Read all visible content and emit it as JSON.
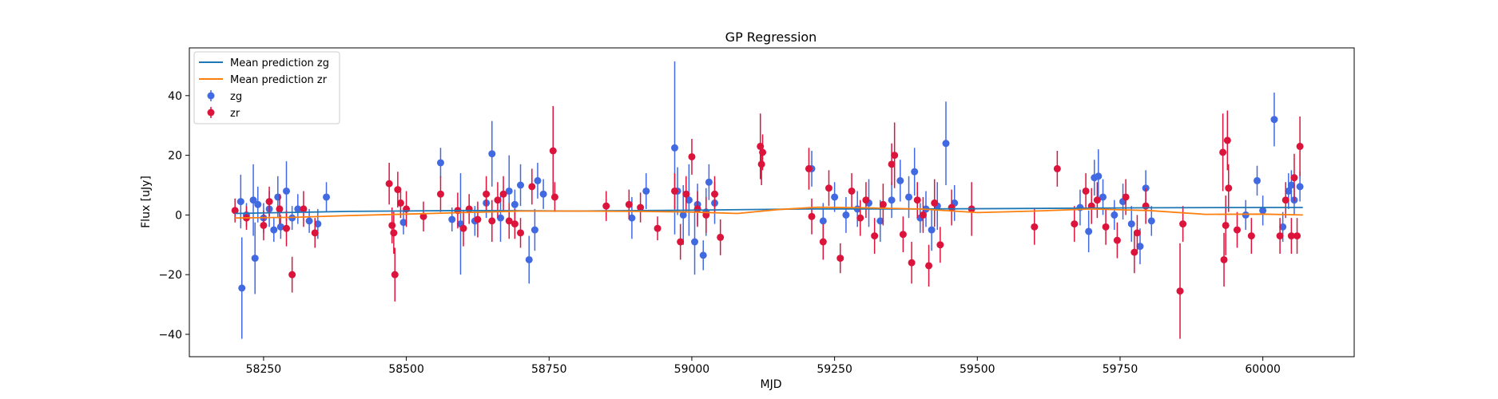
{
  "chart_data": {
    "type": "scatter",
    "title": "GP Regression",
    "xlabel": "MJD",
    "ylabel": "Flux [uJy]",
    "xlim": [
      58120,
      60160
    ],
    "ylim": [
      -47.5,
      56
    ],
    "xticks": [
      58250,
      58500,
      58750,
      59000,
      59250,
      59500,
      59750,
      60000
    ],
    "yticks": [
      -40,
      -20,
      0,
      20,
      40
    ],
    "tick_labels_x": [
      "58250",
      "58500",
      "58750",
      "59000",
      "59250",
      "59500",
      "59750",
      "60000"
    ],
    "tick_labels_y": [
      "−40",
      "−20",
      "0",
      "20",
      "40"
    ],
    "grid": false,
    "legend_position": "top-left",
    "legend": [
      {
        "label": "Mean prediction zg",
        "kind": "line",
        "color": "#1f77b4"
      },
      {
        "label": "Mean prediction zr",
        "kind": "line",
        "color": "#ff7f0e"
      },
      {
        "label": "zg",
        "kind": "errorbar",
        "color": "#4169e1"
      },
      {
        "label": "zr",
        "kind": "errorbar",
        "color": "#dc143c"
      }
    ],
    "series": [
      {
        "name": "Mean prediction zg",
        "type": "line",
        "color": "#1f77b4",
        "points": [
          [
            58200,
            0.5
          ],
          [
            58400,
            1.2
          ],
          [
            58600,
            1.5
          ],
          [
            58800,
            1.3
          ],
          [
            59000,
            1.6
          ],
          [
            59200,
            2.0
          ],
          [
            59400,
            2.0
          ],
          [
            59600,
            2.2
          ],
          [
            59800,
            2.4
          ],
          [
            60000,
            2.5
          ],
          [
            60070,
            2.5
          ]
        ]
      },
      {
        "name": "Mean prediction zr",
        "type": "line",
        "color": "#ff7f0e",
        "points": [
          [
            58200,
            -1.0
          ],
          [
            58300,
            -0.8
          ],
          [
            58400,
            -0.2
          ],
          [
            58500,
            0.3
          ],
          [
            58600,
            0.8
          ],
          [
            58700,
            1.3
          ],
          [
            58800,
            1.3
          ],
          [
            58900,
            1.2
          ],
          [
            59000,
            1.0
          ],
          [
            59080,
            0.5
          ],
          [
            59150,
            1.8
          ],
          [
            59220,
            2.6
          ],
          [
            59300,
            2.4
          ],
          [
            59400,
            2.0
          ],
          [
            59500,
            0.8
          ],
          [
            59600,
            1.3
          ],
          [
            59700,
            2.0
          ],
          [
            59800,
            1.5
          ],
          [
            59900,
            0.2
          ],
          [
            60000,
            0.3
          ],
          [
            60070,
            0.0
          ]
        ]
      },
      {
        "name": "zg",
        "type": "errorbar",
        "color": "#4169e1",
        "points": [
          [
            58210,
            4.5,
            9
          ],
          [
            58212,
            -24.5,
            17
          ],
          [
            58220,
            0,
            4
          ],
          [
            58232,
            5,
            12
          ],
          [
            58235,
            -14.5,
            12
          ],
          [
            58240,
            3.5,
            6
          ],
          [
            58250,
            -1,
            5
          ],
          [
            58260,
            2,
            6
          ],
          [
            58268,
            -5,
            4
          ],
          [
            58275,
            6,
            7
          ],
          [
            58280,
            -4,
            4
          ],
          [
            58290,
            8,
            10
          ],
          [
            58300,
            -1,
            4
          ],
          [
            58310,
            2,
            5
          ],
          [
            58330,
            -2,
            4
          ],
          [
            58345,
            -3,
            5
          ],
          [
            58360,
            6,
            5
          ],
          [
            58495,
            -2.5,
            4
          ],
          [
            58560,
            17.5,
            5
          ],
          [
            58580,
            -1.5,
            4
          ],
          [
            58595,
            -3,
            17
          ],
          [
            58620,
            -2,
            5
          ],
          [
            58640,
            4,
            5
          ],
          [
            58650,
            20.5,
            11
          ],
          [
            58665,
            -1,
            8
          ],
          [
            58680,
            8,
            12
          ],
          [
            58690,
            3.5,
            5
          ],
          [
            58700,
            10,
            7
          ],
          [
            58715,
            -15,
            8
          ],
          [
            58725,
            -5,
            7
          ],
          [
            58730,
            11.5,
            6
          ],
          [
            58740,
            7,
            5
          ],
          [
            58895,
            -1,
            7
          ],
          [
            58920,
            8,
            6
          ],
          [
            58970,
            22.5,
            29
          ],
          [
            58975,
            8,
            8
          ],
          [
            58985,
            0,
            10
          ],
          [
            58995,
            5,
            12
          ],
          [
            59005,
            -9,
            11
          ],
          [
            59010,
            3.5,
            7
          ],
          [
            59020,
            -13.5,
            5
          ],
          [
            59025,
            1,
            8
          ],
          [
            59030,
            11,
            6
          ],
          [
            59040,
            4,
            7
          ],
          [
            59210,
            15.5,
            6
          ],
          [
            59230,
            -2,
            6
          ],
          [
            59250,
            6,
            5
          ],
          [
            59270,
            0,
            6
          ],
          [
            59290,
            2,
            6
          ],
          [
            59310,
            4,
            8
          ],
          [
            59330,
            -2,
            7
          ],
          [
            59350,
            5,
            6
          ],
          [
            59365,
            11.5,
            7
          ],
          [
            59380,
            6,
            7
          ],
          [
            59390,
            14.5,
            8
          ],
          [
            59400,
            -1,
            5
          ],
          [
            59410,
            2,
            6
          ],
          [
            59420,
            -5,
            7
          ],
          [
            59430,
            3,
            8
          ],
          [
            59445,
            24,
            14
          ],
          [
            59460,
            4,
            6
          ],
          [
            59680,
            2.5,
            6
          ],
          [
            59695,
            -5.5,
            7
          ],
          [
            59705,
            12.5,
            6
          ],
          [
            59712,
            13,
            9
          ],
          [
            59720,
            6,
            6
          ],
          [
            59740,
            0,
            5
          ],
          [
            59755,
            4.5,
            6
          ],
          [
            59770,
            -3,
            6
          ],
          [
            59785,
            -10.5,
            6
          ],
          [
            59795,
            9,
            6
          ],
          [
            59805,
            -2,
            5
          ],
          [
            59970,
            0,
            5
          ],
          [
            59990,
            11.5,
            5
          ],
          [
            60000,
            1.5,
            5
          ],
          [
            60020,
            32,
            9
          ],
          [
            60035,
            -4,
            5
          ],
          [
            60045,
            8,
            6
          ],
          [
            60050,
            10,
            5
          ],
          [
            60055,
            5,
            5
          ],
          [
            60065,
            9.5,
            5
          ]
        ]
      },
      {
        "name": "zr",
        "type": "errorbar",
        "color": "#dc143c",
        "points": [
          [
            58200,
            1.5,
            4
          ],
          [
            58220,
            -1,
            4
          ],
          [
            58250,
            -3.5,
            5
          ],
          [
            58260,
            4.5,
            5
          ],
          [
            58278,
            2,
            5
          ],
          [
            58290,
            -4.5,
            6
          ],
          [
            58300,
            -20,
            6
          ],
          [
            58320,
            2,
            6
          ],
          [
            58340,
            -6,
            5
          ],
          [
            58470,
            10.5,
            7
          ],
          [
            58475,
            -3.5,
            6
          ],
          [
            58478,
            -6,
            7
          ],
          [
            58480,
            -20,
            9
          ],
          [
            58485,
            8.5,
            6
          ],
          [
            58490,
            4,
            5
          ],
          [
            58500,
            2,
            6
          ],
          [
            58530,
            -0.5,
            5
          ],
          [
            58560,
            7,
            6
          ],
          [
            58590,
            1.5,
            6
          ],
          [
            58600,
            -4.5,
            6
          ],
          [
            58610,
            2,
            5
          ],
          [
            58625,
            -1.5,
            6
          ],
          [
            58640,
            7,
            6
          ],
          [
            58650,
            -2,
            7
          ],
          [
            58660,
            5,
            6
          ],
          [
            58670,
            7,
            6
          ],
          [
            58680,
            -2,
            6
          ],
          [
            58690,
            -3,
            5
          ],
          [
            58700,
            -6,
            5
          ],
          [
            58720,
            9.5,
            6
          ],
          [
            58757,
            21.5,
            15
          ],
          [
            58760,
            6,
            5
          ],
          [
            58850,
            3,
            5
          ],
          [
            58890,
            3.5,
            5
          ],
          [
            58910,
            2.5,
            5
          ],
          [
            58940,
            -4.5,
            4
          ],
          [
            58970,
            8,
            6
          ],
          [
            58980,
            -9,
            6
          ],
          [
            58990,
            7,
            6
          ],
          [
            59000,
            19.5,
            6
          ],
          [
            59010,
            2,
            6
          ],
          [
            59025,
            0,
            6
          ],
          [
            59040,
            7,
            6
          ],
          [
            59050,
            -7.5,
            6
          ],
          [
            59120,
            23,
            11
          ],
          [
            59122,
            17,
            7
          ],
          [
            59124,
            21,
            6
          ],
          [
            59205,
            15.5,
            7
          ],
          [
            59210,
            -0.5,
            6
          ],
          [
            59230,
            -9,
            6
          ],
          [
            59240,
            9,
            6
          ],
          [
            59260,
            -14.5,
            5
          ],
          [
            59280,
            8,
            6
          ],
          [
            59295,
            -1,
            6
          ],
          [
            59305,
            5,
            6
          ],
          [
            59320,
            -7,
            6
          ],
          [
            59335,
            3.5,
            7
          ],
          [
            59350,
            17,
            7
          ],
          [
            59355,
            20,
            11
          ],
          [
            59370,
            -6.5,
            6
          ],
          [
            59385,
            -16,
            7
          ],
          [
            59395,
            5,
            6
          ],
          [
            59405,
            0,
            6
          ],
          [
            59415,
            -17,
            7
          ],
          [
            59425,
            4,
            8
          ],
          [
            59435,
            -10,
            6
          ],
          [
            59455,
            2.5,
            6
          ],
          [
            59490,
            2,
            9
          ],
          [
            59600,
            -4,
            6
          ],
          [
            59640,
            15.5,
            6
          ],
          [
            59670,
            -3,
            6
          ],
          [
            59690,
            8,
            6
          ],
          [
            59700,
            3,
            6
          ],
          [
            59710,
            5,
            6
          ],
          [
            59725,
            -4,
            6
          ],
          [
            59745,
            -8.5,
            6
          ],
          [
            59760,
            6,
            6
          ],
          [
            59775,
            -12.5,
            7
          ],
          [
            59780,
            -6,
            6
          ],
          [
            59795,
            3,
            6
          ],
          [
            59855,
            -25.5,
            16
          ],
          [
            59860,
            -3,
            6
          ],
          [
            59930,
            21,
            13
          ],
          [
            59932,
            -15,
            9
          ],
          [
            59935,
            -3.5,
            10
          ],
          [
            59938,
            25,
            10
          ],
          [
            59940,
            9,
            8
          ],
          [
            59955,
            -5,
            6
          ],
          [
            59980,
            -7,
            6
          ],
          [
            60030,
            -7,
            6
          ],
          [
            60040,
            5,
            6
          ],
          [
            60050,
            -7,
            6
          ],
          [
            60055,
            12.5,
            8
          ],
          [
            60060,
            -7,
            6
          ],
          [
            60065,
            23,
            10
          ]
        ]
      }
    ]
  }
}
